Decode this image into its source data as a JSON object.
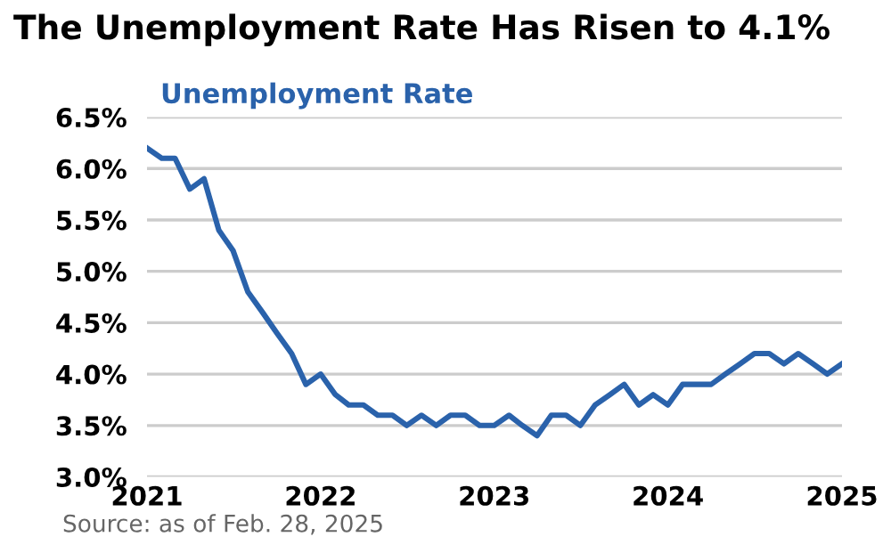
{
  "chart_data": {
    "type": "line",
    "title": "The Unemployment Rate Has Risen to 4.1%",
    "subtitle": "Unemployment Rate",
    "x": [
      "2021-01",
      "2021-02",
      "2021-03",
      "2021-04",
      "2021-05",
      "2021-06",
      "2021-07",
      "2021-08",
      "2021-09",
      "2021-10",
      "2021-11",
      "2021-12",
      "2022-01",
      "2022-02",
      "2022-03",
      "2022-04",
      "2022-05",
      "2022-06",
      "2022-07",
      "2022-08",
      "2022-09",
      "2022-10",
      "2022-11",
      "2022-12",
      "2023-01",
      "2023-02",
      "2023-03",
      "2023-04",
      "2023-05",
      "2023-06",
      "2023-07",
      "2023-08",
      "2023-09",
      "2023-10",
      "2023-11",
      "2023-12",
      "2024-01",
      "2024-02",
      "2024-03",
      "2024-04",
      "2024-05",
      "2024-06",
      "2024-07",
      "2024-08",
      "2024-09",
      "2024-10",
      "2024-11",
      "2024-12",
      "2025-01"
    ],
    "series": [
      {
        "color": "#2a62ab",
        "values": [
          6.2,
          6.1,
          6.1,
          5.8,
          5.9,
          5.4,
          5.2,
          4.8,
          4.6,
          4.4,
          4.2,
          3.9,
          4.0,
          3.8,
          3.7,
          3.7,
          3.6,
          3.6,
          3.5,
          3.6,
          3.5,
          3.6,
          3.6,
          3.5,
          3.5,
          3.6,
          3.5,
          3.4,
          3.6,
          3.6,
          3.5,
          3.7,
          3.8,
          3.9,
          3.7,
          3.8,
          3.7,
          3.9,
          3.9,
          3.9,
          4.0,
          4.1,
          4.2,
          4.2,
          4.1,
          4.2,
          4.1,
          4.0,
          4.1
        ]
      }
    ],
    "xlim": [
      "2021-01",
      "2025-01"
    ],
    "xticks": [
      {
        "value": "2021-01",
        "label": "2021"
      },
      {
        "value": "2022-01",
        "label": "2022"
      },
      {
        "value": "2023-01",
        "label": "2023"
      },
      {
        "value": "2024-01",
        "label": "2024"
      },
      {
        "value": "2025-01",
        "label": "2025"
      }
    ],
    "ylim": [
      3.0,
      6.5
    ],
    "yticks": [
      {
        "value": 3.0,
        "label": "3.0%"
      },
      {
        "value": 3.5,
        "label": "3.5%"
      },
      {
        "value": 4.0,
        "label": "4.0%"
      },
      {
        "value": 4.5,
        "label": "4.5%"
      },
      {
        "value": 5.0,
        "label": "5.0%"
      },
      {
        "value": 5.5,
        "label": "5.5%"
      },
      {
        "value": 6.0,
        "label": "6.0%"
      },
      {
        "value": 6.5,
        "label": "6.5%"
      }
    ],
    "grid": "y",
    "line_style": "solid",
    "marker": "none",
    "annotations": [
      "Source: as of Feb. 28, 2025"
    ]
  }
}
